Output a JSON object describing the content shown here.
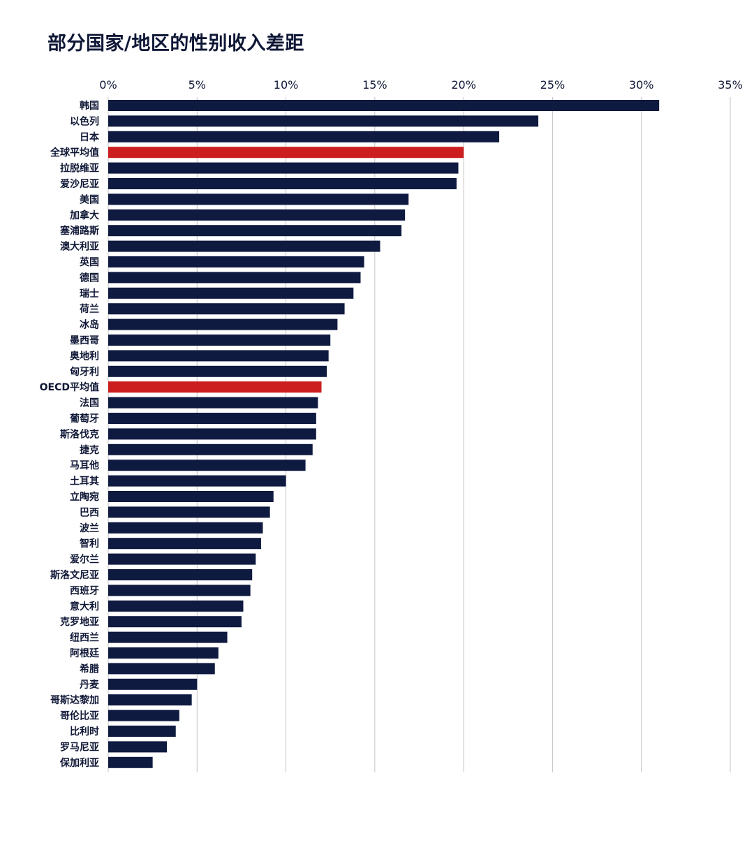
{
  "chart_data": {
    "type": "bar",
    "orientation": "horizontal",
    "title": "部分国家/地区的性别收入差距",
    "xlim": [
      0,
      35
    ],
    "x_ticks": [
      "0%",
      "5%",
      "10%",
      "15%",
      "20%",
      "25%",
      "30%",
      "35%"
    ],
    "x_tick_values": [
      0,
      5,
      10,
      15,
      20,
      25,
      30,
      35
    ],
    "grid": "vertical",
    "colors": {
      "bar": "#0f1a40",
      "highlight": "#cc1e1e",
      "grid": "#c4c4c4",
      "text": "#0f1736"
    },
    "highlight_categories": [
      "全球平均值",
      "OECD平均值"
    ],
    "categories": [
      "韩国",
      "以色列",
      "日本",
      "全球平均值",
      "拉脱维亚",
      "爱沙尼亚",
      "美国",
      "加拿大",
      "塞浦路斯",
      "澳大利亚",
      "英国",
      "德国",
      "瑞士",
      "荷兰",
      "冰岛",
      "墨西哥",
      "奥地利",
      "匈牙利",
      "OECD平均值",
      "法国",
      "葡萄牙",
      "斯洛伐克",
      "捷克",
      "马耳他",
      "土耳其",
      "立陶宛",
      "巴西",
      "波兰",
      "智利",
      "爱尔兰",
      "斯洛文尼亚",
      "西班牙",
      "意大利",
      "克罗地亚",
      "纽西兰",
      "阿根廷",
      "希腊",
      "丹麦",
      "哥斯达黎加",
      "哥伦比亚",
      "比利时",
      "罗马尼亚",
      "保加利亚"
    ],
    "values": [
      31.0,
      24.2,
      22.0,
      20.0,
      19.7,
      19.6,
      16.9,
      16.7,
      16.5,
      15.3,
      14.4,
      14.2,
      13.8,
      13.3,
      12.9,
      12.5,
      12.4,
      12.3,
      12.0,
      11.8,
      11.7,
      11.7,
      11.5,
      11.1,
      10.0,
      9.3,
      9.1,
      8.7,
      8.6,
      8.3,
      8.1,
      8.0,
      7.6,
      7.5,
      6.7,
      6.2,
      6.0,
      5.0,
      4.7,
      4.0,
      3.8,
      3.3,
      2.5
    ]
  }
}
